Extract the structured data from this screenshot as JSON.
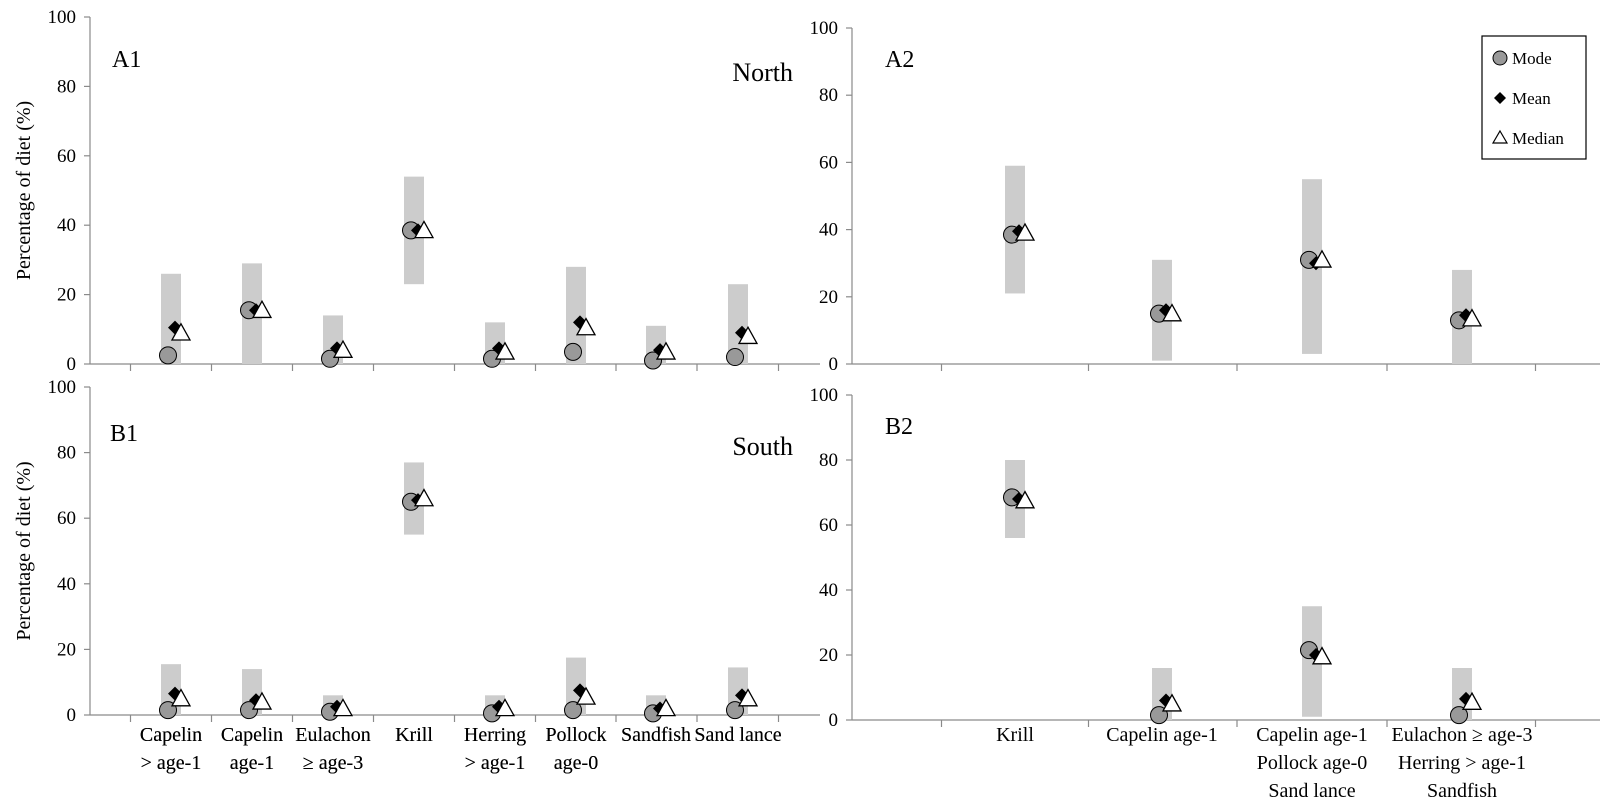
{
  "figure": {
    "y_axis_label": "Percentage of diet (%)",
    "legend": [
      "Mode",
      "Mean",
      "Median"
    ],
    "colors": {
      "range_bar": "#cccccc",
      "mode": "#999999",
      "mean": "#000000",
      "median": "#ffffff"
    }
  },
  "chart_data": [
    {
      "panel": "A1",
      "region": "North",
      "type": "scatter",
      "ylabel": "Percentage of diet (%)",
      "ylim": [
        0,
        100
      ],
      "yticks": [
        0,
        20,
        40,
        60,
        80,
        100
      ],
      "categories": [
        [
          "Capelin",
          "> age-1"
        ],
        [
          "Capelin",
          "age-1"
        ],
        [
          "Eulachon",
          "≥ age-3"
        ],
        [
          "Krill"
        ],
        [
          "Herring",
          "> age-1"
        ],
        [
          "Pollock",
          "age-0"
        ],
        [
          "Sandfish"
        ],
        [
          "Sand lance"
        ]
      ],
      "mode": [
        2.5,
        15.5,
        1.5,
        38.5,
        1.5,
        3.5,
        1,
        2
      ],
      "mean": [
        10.5,
        15.5,
        4.5,
        38.5,
        4.5,
        12,
        4,
        9
      ],
      "median": [
        9,
        15.5,
        4,
        38.5,
        3.5,
        10.5,
        3.5,
        8
      ],
      "range": [
        [
          0,
          26
        ],
        [
          0,
          29
        ],
        [
          0,
          14
        ],
        [
          23,
          54
        ],
        [
          0,
          12
        ],
        [
          0,
          28
        ],
        [
          0,
          11
        ],
        [
          0,
          23
        ]
      ]
    },
    {
      "panel": "A2",
      "region": "",
      "type": "scatter",
      "ylabel": "",
      "ylim": [
        0,
        100
      ],
      "yticks": [
        0,
        20,
        40,
        60,
        80,
        100
      ],
      "categories": [
        [],
        [],
        [],
        []
      ],
      "mode": [
        38.5,
        15,
        31,
        13
      ],
      "mean": [
        39.5,
        16,
        30,
        14.5
      ],
      "median": [
        39,
        15,
        31,
        13.5
      ],
      "range": [
        [
          21,
          59
        ],
        [
          1,
          31
        ],
        [
          3,
          55
        ],
        [
          0,
          28
        ]
      ]
    },
    {
      "panel": "B1",
      "region": "South",
      "type": "scatter",
      "ylabel": "Percentage of diet (%)",
      "ylim": [
        0,
        100
      ],
      "yticks": [
        0,
        20,
        40,
        60,
        80,
        100
      ],
      "categories": [
        [
          "Capelin",
          "> age-1"
        ],
        [
          "Capelin",
          "age-1"
        ],
        [
          "Eulachon",
          "≥ age-3"
        ],
        [
          "Krill"
        ],
        [
          "Herring",
          "> age-1"
        ],
        [
          "Pollock",
          "age-0"
        ],
        [
          "Sandfish"
        ],
        [
          "Sand lance"
        ]
      ],
      "mode": [
        1.5,
        1.5,
        1,
        65,
        0.5,
        1.5,
        0.5,
        1.5
      ],
      "mean": [
        6.5,
        4.5,
        2.5,
        65.5,
        2.5,
        7.5,
        2,
        6
      ],
      "median": [
        5,
        4,
        2,
        66,
        2,
        5.5,
        2,
        5
      ],
      "range": [
        [
          0,
          15.5
        ],
        [
          0,
          14
        ],
        [
          0,
          6
        ],
        [
          55,
          77
        ],
        [
          0,
          6
        ],
        [
          0,
          17.5
        ],
        [
          0,
          6
        ],
        [
          0,
          14.5
        ]
      ]
    },
    {
      "panel": "B2",
      "region": "",
      "type": "scatter",
      "ylabel": "",
      "ylim": [
        0,
        100
      ],
      "yticks": [
        0,
        20,
        40,
        60,
        80,
        100
      ],
      "categories": [
        [
          "Krill"
        ],
        [
          "Capelin age-1"
        ],
        [
          "Capelin age-1",
          "Pollock age-0",
          "Sand lance"
        ],
        [
          "Eulachon ≥ age-3",
          "Herring > age-1",
          "Sandfish"
        ]
      ],
      "mode": [
        68.5,
        1.5,
        21.5,
        1.5
      ],
      "mean": [
        68,
        6,
        20,
        6.5
      ],
      "median": [
        67.5,
        5,
        19.5,
        5.5
      ],
      "range": [
        [
          56,
          80
        ],
        [
          0,
          16
        ],
        [
          1,
          35
        ],
        [
          0,
          16
        ]
      ]
    }
  ]
}
